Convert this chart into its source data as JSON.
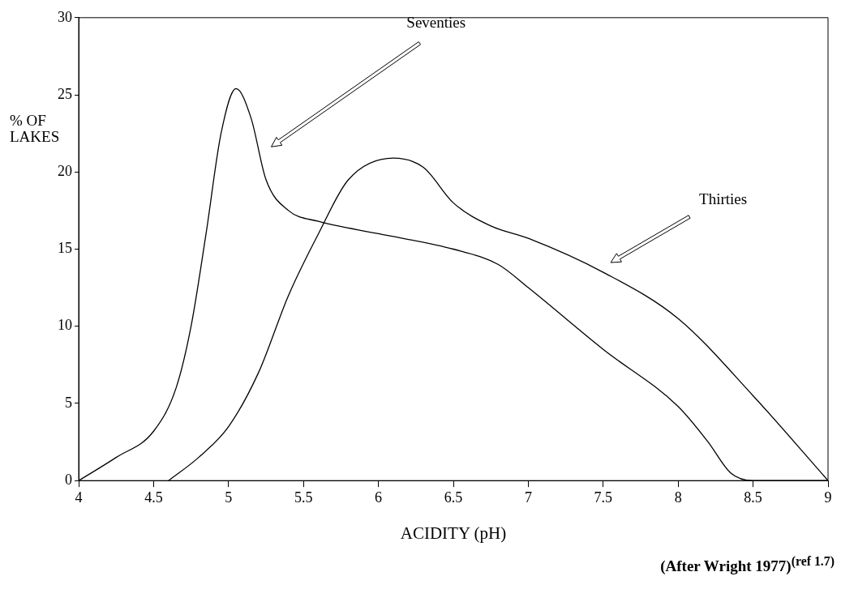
{
  "chart_data": {
    "type": "line",
    "xlabel": "ACIDITY (pH)",
    "ylabel": "% OF LAKES",
    "xlim": [
      4,
      9
    ],
    "ylim": [
      0,
      30
    ],
    "xticks": [
      4,
      4.5,
      5,
      5.5,
      6,
      6.5,
      7,
      7.5,
      8,
      8.5,
      9
    ],
    "yticks": [
      0,
      5,
      10,
      15,
      20,
      25,
      30
    ],
    "grid": false,
    "legend": false,
    "marker": "none",
    "line_style": "solid",
    "series": [
      {
        "color": "#000000",
        "x": [
          4,
          4.25,
          4.5,
          4.65,
          4.75,
          4.85,
          4.95,
          5.05,
          5.15,
          5.25,
          5.4,
          5.6,
          6,
          6.5,
          6.8,
          7,
          7.5,
          8,
          8.2,
          8.35,
          8.5,
          9
        ],
        "values": [
          0,
          1.5,
          3.2,
          6,
          10,
          16,
          22.5,
          25.4,
          23.5,
          19.5,
          17.5,
          16.8,
          16,
          15,
          14,
          12.5,
          8.5,
          4.8,
          2.5,
          0.5,
          0,
          0
        ]
      },
      {
        "color": "#000000",
        "x": [
          4.6,
          4.8,
          5,
          5.2,
          5.4,
          5.6,
          5.8,
          6.1,
          6.3,
          6.5,
          6.75,
          7,
          7.5,
          8,
          8.5,
          9
        ],
        "values": [
          0,
          1.5,
          3.5,
          7,
          12,
          16,
          19.5,
          20.9,
          20.3,
          18,
          16.5,
          15.7,
          13.5,
          10.5,
          5.5,
          0
        ]
      }
    ],
    "annotations": [
      "Seventies",
      "Thirties",
      "(After Wright 1977)$^{(ref 1.7)}$"
    ]
  }
}
